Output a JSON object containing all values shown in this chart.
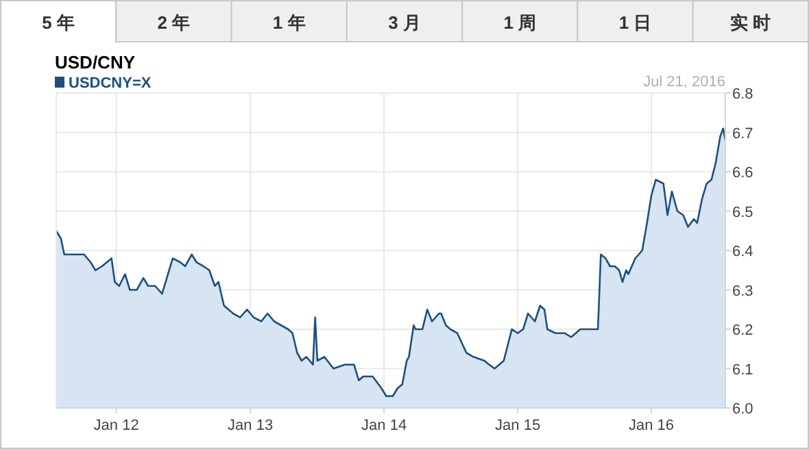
{
  "chart_data": {
    "type": "area",
    "title": "USD/CNY",
    "annotations": [
      "Jul 21, 2016",
      "5 年",
      "2 年",
      "1 年",
      "3 月",
      "1 周",
      "1 日",
      "实 时"
    ],
    "x": [
      "2011-07-21",
      "2011-08-03",
      "2011-08-12",
      "2011-09-03",
      "2011-09-22",
      "2011-10-05",
      "2011-10-23",
      "2011-11-05",
      "2011-11-23",
      "2011-12-06",
      "2011-12-19",
      "2011-12-28",
      "2012-01-09",
      "2012-01-25",
      "2012-02-07",
      "2012-02-26",
      "2012-03-15",
      "2012-03-28",
      "2012-04-16",
      "2012-05-05",
      "2012-05-18",
      "2012-06-03",
      "2012-06-24",
      "2012-07-07",
      "2012-07-25",
      "2012-08-07",
      "2012-08-26",
      "2012-09-11",
      "2012-09-26",
      "2012-10-06",
      "2012-10-21",
      "2012-11-15",
      "2012-12-04",
      "2012-12-23",
      "2013-01-10",
      "2013-01-31",
      "2013-02-17",
      "2013-03-07",
      "2013-04-14",
      "2013-04-26",
      "2013-05-09",
      "2013-05-21",
      "2013-06-03",
      "2013-06-21",
      "2013-06-27",
      "2013-07-03",
      "2013-07-22",
      "2013-08-16",
      "2013-09-16",
      "2013-10-11",
      "2013-10-24",
      "2013-11-05",
      "2013-12-01",
      "2013-12-25",
      "2014-01-07",
      "2014-01-25",
      "2014-02-07",
      "2014-02-20",
      "2014-03-04",
      "2014-03-10",
      "2014-03-23",
      "2014-03-28",
      "2014-04-16",
      "2014-04-29",
      "2014-05-12",
      "2014-05-31",
      "2014-06-06",
      "2014-06-19",
      "2014-07-01",
      "2014-07-20",
      "2014-08-14",
      "2014-09-02",
      "2014-10-02",
      "2014-10-15",
      "2014-10-30",
      "2014-11-24",
      "2014-12-16",
      "2015-01-01",
      "2015-01-16",
      "2015-01-29",
      "2015-02-17",
      "2015-03-03",
      "2015-03-15",
      "2015-03-23",
      "2015-04-14",
      "2015-05-09",
      "2015-05-27",
      "2015-06-21",
      "2015-07-16",
      "2015-08-08",
      "2015-08-16",
      "2015-08-29",
      "2015-09-10",
      "2015-09-23",
      "2015-10-05",
      "2015-10-14",
      "2015-10-24",
      "2015-10-30",
      "2015-11-18",
      "2015-12-07",
      "2015-12-20",
      "2016-01-01",
      "2016-01-13",
      "2016-02-03",
      "2016-02-14",
      "2016-02-26",
      "2016-03-12",
      "2016-03-28",
      "2016-04-10",
      "2016-04-26",
      "2016-05-05",
      "2016-05-18",
      "2016-05-31",
      "2016-06-13",
      "2016-06-24",
      "2016-07-07",
      "2016-07-15",
      "2016-07-21"
    ],
    "series": [
      {
        "name": "USDCNY=X",
        "color": "#1d4f80",
        "values": [
          6.45,
          6.43,
          6.39,
          6.39,
          6.39,
          6.39,
          6.37,
          6.35,
          6.36,
          6.37,
          6.38,
          6.32,
          6.31,
          6.34,
          6.3,
          6.3,
          6.33,
          6.31,
          6.31,
          6.29,
          6.33,
          6.38,
          6.37,
          6.36,
          6.39,
          6.37,
          6.36,
          6.35,
          6.31,
          6.32,
          6.26,
          6.24,
          6.23,
          6.25,
          6.23,
          6.22,
          6.24,
          6.22,
          6.2,
          6.19,
          6.14,
          6.12,
          6.13,
          6.11,
          6.23,
          6.12,
          6.13,
          6.1,
          6.11,
          6.11,
          6.07,
          6.08,
          6.08,
          6.05,
          6.03,
          6.03,
          6.05,
          6.06,
          6.12,
          6.13,
          6.21,
          6.2,
          6.2,
          6.25,
          6.22,
          6.24,
          6.24,
          6.21,
          6.2,
          6.19,
          6.14,
          6.13,
          6.12,
          6.11,
          6.1,
          6.12,
          6.2,
          6.19,
          6.2,
          6.24,
          6.22,
          6.26,
          6.25,
          6.2,
          6.19,
          6.19,
          6.18,
          6.2,
          6.2,
          6.2,
          6.39,
          6.38,
          6.36,
          6.36,
          6.35,
          6.32,
          6.35,
          6.34,
          6.38,
          6.4,
          6.47,
          6.54,
          6.58,
          6.57,
          6.49,
          6.55,
          6.5,
          6.49,
          6.46,
          6.48,
          6.47,
          6.53,
          6.57,
          6.58,
          6.62,
          6.69,
          6.71,
          6.68
        ]
      }
    ],
    "xlim": [
      "2011-07-21",
      "2016-07-21"
    ],
    "xticks": [
      {
        "value": "2012-01-01",
        "label": "Jan 12"
      },
      {
        "value": "2013-01-01",
        "label": "Jan 13"
      },
      {
        "value": "2014-01-01",
        "label": "Jan 14"
      },
      {
        "value": "2015-01-01",
        "label": "Jan 15"
      },
      {
        "value": "2016-01-01",
        "label": "Jan 16"
      }
    ],
    "ylim": [
      6.0,
      6.8
    ],
    "yticks": [
      {
        "value": 6.0,
        "label": "6.0"
      },
      6.1,
      6.2,
      6.3,
      6.4,
      6.5,
      6.6,
      6.7,
      6.8
    ],
    "grid": true,
    "legend": "top left"
  }
}
